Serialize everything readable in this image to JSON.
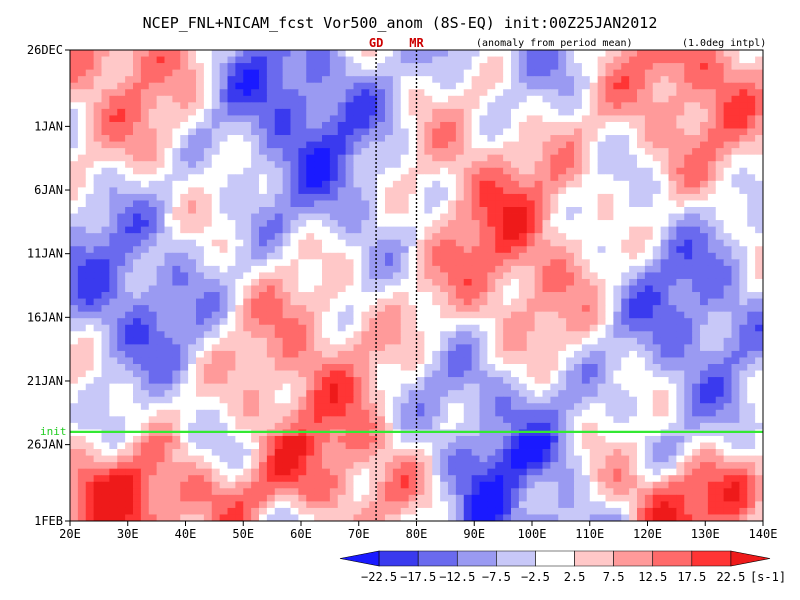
{
  "chart_data": {
    "type": "heatmap",
    "title": "NCEP_FNL+NICAM_fcst Vor500_anom (8S-EQ) init:00Z25JAN2012",
    "subtitle_left": "(anomaly from period mean)",
    "subtitle_right": "(1.0deg intpl)",
    "x_axis": {
      "range": [
        20,
        140
      ],
      "ticks": [
        20,
        30,
        40,
        50,
        60,
        70,
        80,
        90,
        100,
        110,
        120,
        130,
        140
      ],
      "tick_labels": [
        "20E",
        "30E",
        "40E",
        "50E",
        "60E",
        "70E",
        "80E",
        "90E",
        "100E",
        "110E",
        "120E",
        "130E",
        "140E"
      ]
    },
    "y_axis": {
      "range_days": [
        0,
        37
      ],
      "ticks_days": [
        0,
        6,
        11,
        16,
        21,
        26,
        31,
        37
      ],
      "tick_labels": [
        "26DEC",
        "1JAN",
        "6JAN",
        "11JAN",
        "16JAN",
        "21JAN",
        "26JAN",
        "1FEB"
      ]
    },
    "reference_lines": [
      {
        "label": "GD",
        "lon": 73
      },
      {
        "label": "MR",
        "lon": 80
      }
    ],
    "init_line": {
      "label": "init",
      "day": 30
    },
    "colorbar": {
      "levels": [
        "−22.5",
        "−17.5",
        "−12.5",
        "−7.5",
        "−2.5",
        "2.5",
        "7.5",
        "12.5",
        "17.5",
        "22.5"
      ],
      "colors": [
        "#1a1aff",
        "#3a3aee",
        "#6a6aee",
        "#9a9af2",
        "#c8c8f8",
        "#ffffff",
        "#ffc8c8",
        "#ff9a9a",
        "#ff6a6a",
        "#ff3535",
        "#ee1a1a"
      ],
      "unit": "[s-1]"
    }
  }
}
